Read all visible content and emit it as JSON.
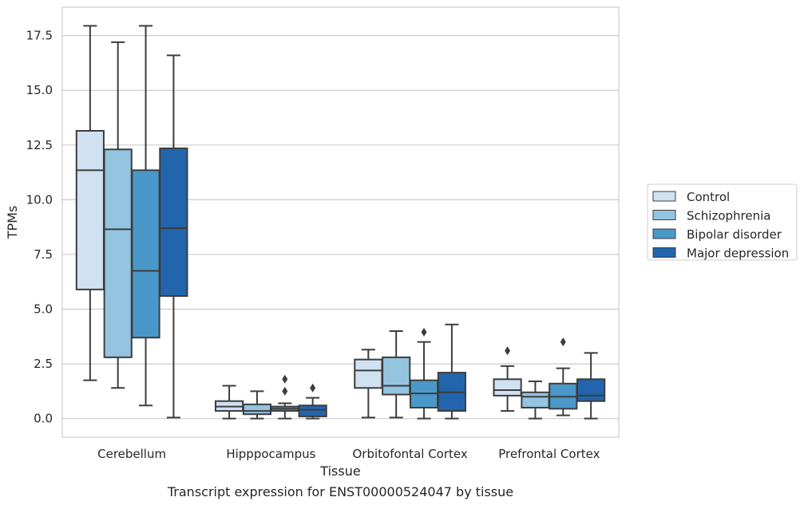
{
  "chart_data": {
    "type": "boxplot",
    "title": "",
    "caption": "Transcript expression for ENST00000524047 by tissue",
    "xlabel": "Tissue",
    "ylabel": "TPMs",
    "ylim": [
      -0.85,
      18.8
    ],
    "yticks": [
      0.0,
      2.5,
      5.0,
      7.5,
      10.0,
      12.5,
      15.0,
      17.5
    ],
    "ytick_labels": [
      "0.0",
      "2.5",
      "5.0",
      "7.5",
      "10.0",
      "12.5",
      "15.0",
      "17.5"
    ],
    "grid": "horizontal",
    "legend_position": "right",
    "categories": [
      "Cerebellum",
      "Hipppocampus",
      "Orbitofontal Cortex",
      "Prefrontal Cortex"
    ],
    "series": [
      {
        "name": "Control",
        "color": "#d0e1f2",
        "boxes": [
          {
            "whisker_low": 1.75,
            "q1": 5.9,
            "median": 11.35,
            "q3": 13.15,
            "whisker_high": 17.95,
            "outliers": []
          },
          {
            "whisker_low": 0.0,
            "q1": 0.35,
            "median": 0.55,
            "q3": 0.8,
            "whisker_high": 1.5,
            "outliers": []
          },
          {
            "whisker_low": 0.05,
            "q1": 1.4,
            "median": 2.2,
            "q3": 2.7,
            "whisker_high": 3.15,
            "outliers": []
          },
          {
            "whisker_low": 0.35,
            "q1": 1.05,
            "median": 1.3,
            "q3": 1.8,
            "whisker_high": 2.4,
            "outliers": [
              3.1
            ]
          }
        ]
      },
      {
        "name": "Schizophrenia",
        "color": "#94c4df",
        "boxes": [
          {
            "whisker_low": 1.4,
            "q1": 2.8,
            "median": 8.65,
            "q3": 12.3,
            "whisker_high": 17.2,
            "outliers": []
          },
          {
            "whisker_low": 0.0,
            "q1": 0.2,
            "median": 0.35,
            "q3": 0.65,
            "whisker_high": 1.25,
            "outliers": []
          },
          {
            "whisker_low": 0.05,
            "q1": 1.1,
            "median": 1.5,
            "q3": 2.8,
            "whisker_high": 4.0,
            "outliers": []
          },
          {
            "whisker_low": 0.0,
            "q1": 0.5,
            "median": 1.0,
            "q3": 1.2,
            "whisker_high": 1.7,
            "outliers": []
          }
        ]
      },
      {
        "name": "Bipolar disorder",
        "color": "#4a98c9",
        "boxes": [
          {
            "whisker_low": 0.6,
            "q1": 3.7,
            "median": 6.75,
            "q3": 11.35,
            "whisker_high": 17.95,
            "outliers": []
          },
          {
            "whisker_low": 0.0,
            "q1": 0.35,
            "median": 0.45,
            "q3": 0.55,
            "whisker_high": 0.7,
            "outliers": [
              1.25,
              1.8
            ]
          },
          {
            "whisker_low": 0.0,
            "q1": 0.5,
            "median": 1.15,
            "q3": 1.75,
            "whisker_high": 3.5,
            "outliers": [
              3.95
            ]
          },
          {
            "whisker_low": 0.15,
            "q1": 0.45,
            "median": 1.0,
            "q3": 1.6,
            "whisker_high": 2.3,
            "outliers": [
              3.5
            ]
          }
        ]
      },
      {
        "name": "Major depression",
        "color": "#2265ad",
        "boxes": [
          {
            "whisker_low": 0.05,
            "q1": 5.6,
            "median": 8.7,
            "q3": 12.35,
            "whisker_high": 16.6,
            "outliers": []
          },
          {
            "whisker_low": 0.0,
            "q1": 0.1,
            "median": 0.4,
            "q3": 0.6,
            "whisker_high": 0.95,
            "outliers": [
              1.4
            ]
          },
          {
            "whisker_low": 0.0,
            "q1": 0.35,
            "median": 1.2,
            "q3": 2.1,
            "whisker_high": 4.3,
            "outliers": []
          },
          {
            "whisker_low": 0.0,
            "q1": 0.8,
            "median": 1.05,
            "q3": 1.8,
            "whisker_high": 3.0,
            "outliers": []
          }
        ]
      }
    ]
  }
}
